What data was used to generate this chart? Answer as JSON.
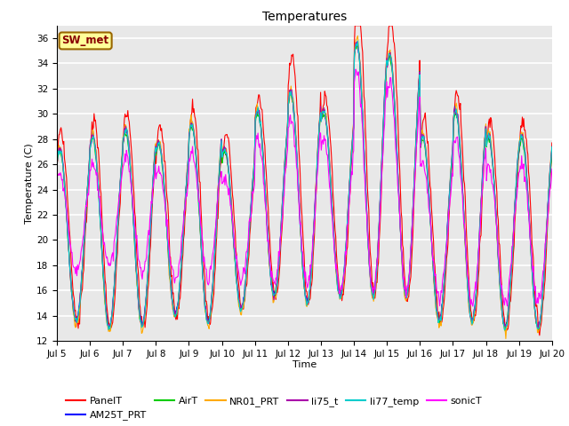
{
  "title": "Temperatures",
  "xlabel": "Time",
  "ylabel": "Temperature (C)",
  "ylim": [
    12,
    37
  ],
  "x_tick_labels": [
    "Jul 5",
    "Jul 6",
    "Jul 7",
    "Jul 8",
    "Jul 9",
    "Jul 10",
    "Jul 11",
    "Jul 12",
    "Jul 13",
    "Jul 14",
    "Jul 15",
    "Jul 16",
    "Jul 17",
    "Jul 18",
    "Jul 19",
    "Jul 20"
  ],
  "series_colors": {
    "PanelT": "#ff0000",
    "AM25T_PRT": "#0000ff",
    "AirT": "#00cc00",
    "NR01_PRT": "#ffaa00",
    "li75_t": "#aa00aa",
    "li77_temp": "#00cccc",
    "sonicT": "#ff00ff"
  },
  "annotation_text": "SW_met",
  "annotation_bg": "#ffff99",
  "annotation_border": "#996600",
  "annotation_text_color": "#880000",
  "background_color": "#e8e8e8",
  "grid_color": "#ffffff",
  "fig_bg": "#ffffff",
  "title_fontsize": 10,
  "axis_label_fontsize": 8,
  "tick_fontsize": 7.5,
  "legend_fontsize": 8,
  "linewidth": 0.8
}
